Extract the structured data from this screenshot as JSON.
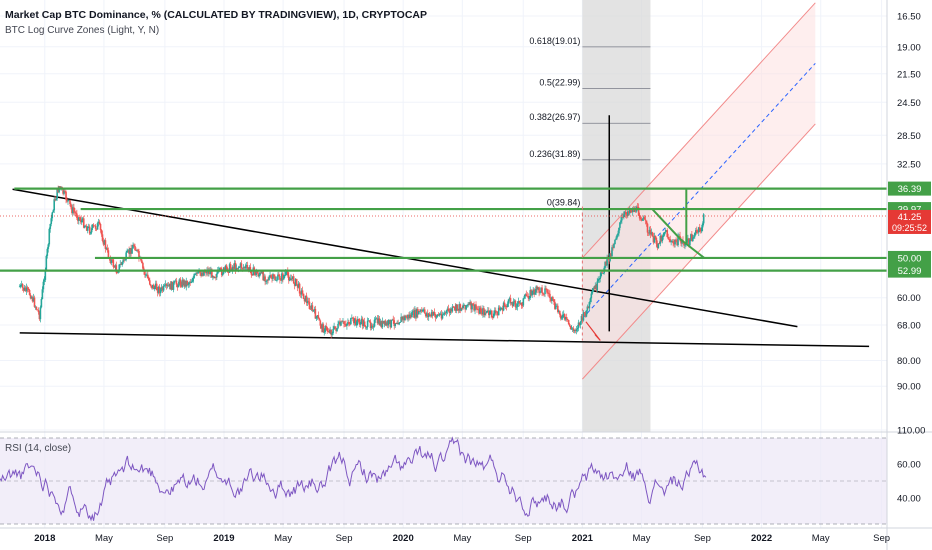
{
  "header": {
    "title": "Market Cap BTC Dominance, % (CALCULATED BY TRADINGVIEW), 1D, CRYPTOCAP",
    "indicator": "BTC Log Curve Zones (Light, Y, N)",
    "rsi_label": "RSI (14, close)"
  },
  "colors": {
    "candle_up": "#26a69a",
    "candle_down": "#ef5350",
    "zone_green": "#43a047",
    "trendline": "#000000",
    "channel_red": "#f28a8a",
    "channel_mid": "#2962ff",
    "rsi_line": "#7e57c2",
    "rsi_band": "#ede7f6",
    "current_price": "#e53935",
    "vertical_highlight": "#d9d9d9"
  },
  "current_price": {
    "value": "41.25",
    "countdown": "09:25:52"
  },
  "chart_data": [
    {
      "type": "line",
      "name": "price",
      "y_scale": "inverted-log",
      "y_tick_labels": [
        "16.50",
        "19.00",
        "21.50",
        "24.50",
        "28.50",
        "32.50",
        "39.97",
        "50.00",
        "60.00",
        "68.00",
        "80.00",
        "90.00",
        "110.00"
      ],
      "x_tick_labels": [
        "2018",
        "May",
        "Sep",
        "2019",
        "May",
        "Sep",
        "2020",
        "May",
        "Sep",
        "2021",
        "May",
        "Sep",
        "2022",
        "May",
        "Sep"
      ],
      "x": [
        2017.86,
        2017.92,
        2017.97,
        2018.01,
        2018.03,
        2018.05,
        2018.08,
        2018.12,
        2018.15,
        2018.2,
        2018.25,
        2018.3,
        2018.35,
        2018.4,
        2018.45,
        2018.5,
        2018.55,
        2018.6,
        2018.65,
        2018.7,
        2018.75,
        2018.8,
        2018.85,
        2018.9,
        2018.95,
        2019.0,
        2019.05,
        2019.1,
        2019.15,
        2019.2,
        2019.25,
        2019.3,
        2019.35,
        2019.4,
        2019.45,
        2019.5,
        2019.55,
        2019.6,
        2019.65,
        2019.7,
        2019.75,
        2019.8,
        2019.85,
        2019.9,
        2019.95,
        2020.0,
        2020.05,
        2020.1,
        2020.15,
        2020.2,
        2020.25,
        2020.3,
        2020.35,
        2020.4,
        2020.45,
        2020.5,
        2020.55,
        2020.6,
        2020.65,
        2020.7,
        2020.75,
        2020.8,
        2020.85,
        2020.9,
        2020.95,
        2021.0,
        2021.02,
        2021.04,
        2021.06,
        2021.08,
        2021.1,
        2021.12,
        2021.15,
        2021.18,
        2021.22,
        2021.26,
        2021.3,
        2021.34,
        2021.38,
        2021.42,
        2021.46,
        2021.5,
        2021.54,
        2021.58,
        2021.62,
        2021.66,
        2021.68
      ],
      "values": [
        57,
        59,
        65,
        50,
        43,
        39,
        36,
        38,
        40,
        42,
        44,
        43,
        49,
        53,
        50,
        47,
        53,
        57,
        58,
        57,
        56,
        56,
        54,
        53,
        54,
        53,
        52,
        52,
        53,
        54,
        55,
        55,
        54,
        56,
        60,
        64,
        69,
        70,
        68,
        67,
        67,
        68,
        67,
        68,
        67,
        66,
        65,
        64,
        65,
        65,
        64,
        63,
        62,
        63,
        64,
        65,
        63,
        61,
        62,
        59,
        58,
        58,
        63,
        66,
        70,
        66,
        64,
        62,
        58,
        57,
        55,
        52,
        50,
        46,
        42,
        40,
        40,
        42,
        45,
        47,
        44,
        47,
        46,
        47,
        45,
        44,
        41.25
      ]
    },
    {
      "type": "line",
      "name": "RSI (14, close)",
      "ylim": [
        25,
        75
      ],
      "y_tick_labels": [
        "60.00",
        "40.00"
      ],
      "x_tick_labels": [
        "2018",
        "May",
        "Sep",
        "2019",
        "May",
        "Sep",
        "2020",
        "May",
        "Sep",
        "2021",
        "May",
        "Sep",
        "2022",
        "May",
        "Sep"
      ]
    }
  ],
  "fib": {
    "labels": [
      "0.618(19.01)",
      "0.5(22.99)",
      "0.382(26.97)",
      "0.236(31.89)",
      "0(39.84)"
    ],
    "y_values": [
      19.01,
      22.99,
      26.97,
      31.89,
      39.84
    ]
  },
  "zones": {
    "price_labels": [
      "36.39",
      "39.97",
      "50.00",
      "52.99"
    ],
    "values": [
      36.39,
      39.97,
      50.0,
      52.99
    ]
  }
}
